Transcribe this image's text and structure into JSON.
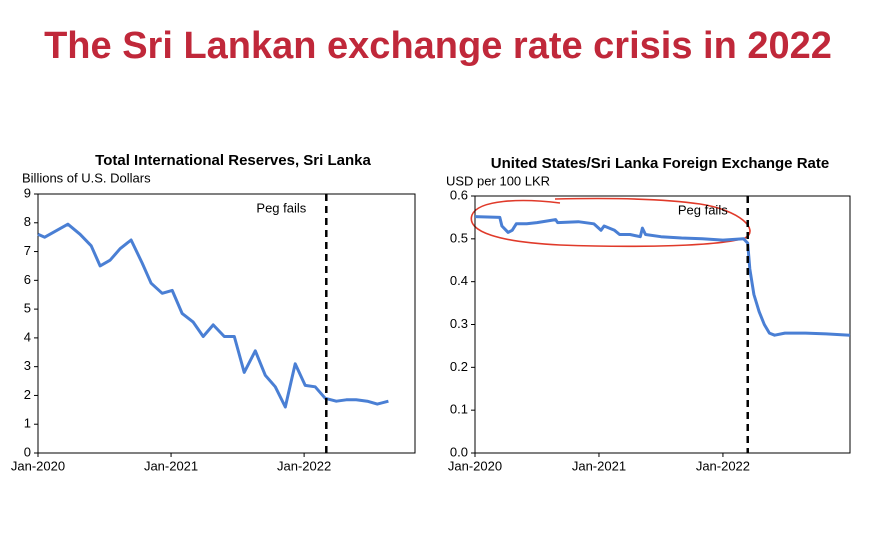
{
  "title": "The Sri Lankan exchange rate crisis in 2022",
  "chart_data": [
    {
      "type": "line",
      "title": "Total International Reserves, Sri Lanka",
      "y_label": "Billions of U.S. Dollars",
      "x": [
        0,
        0.6,
        2.7,
        3.8,
        4.8,
        5.6,
        6.5,
        7.4,
        8.4,
        9.4,
        10.2,
        11.2,
        12.1,
        13,
        14,
        14.9,
        15.8,
        16.8,
        17.7,
        18.6,
        19.6,
        20.5,
        21.4,
        22.3,
        23.2,
        24.1,
        25,
        25.9,
        26.9,
        27.8,
        28.7,
        29.7,
        30.6,
        31.6
      ],
      "values": [
        7.6,
        7.5,
        7.95,
        7.6,
        7.2,
        6.5,
        6.7,
        7.1,
        7.4,
        6.6,
        5.9,
        5.55,
        5.65,
        4.85,
        4.55,
        4.05,
        4.45,
        4.05,
        4.05,
        2.8,
        3.55,
        2.7,
        2.3,
        1.6,
        3.1,
        2.35,
        2.3,
        1.9,
        1.8,
        1.85,
        1.85,
        1.8,
        1.7,
        1.8
      ],
      "color": "#4a7fd4",
      "xlim": [
        0,
        34
      ],
      "xticks": [
        {
          "value": 0,
          "label": "Jan-2020"
        },
        {
          "value": 12,
          "label": "Jan-2021"
        },
        {
          "value": 24,
          "label": "Jan-2022"
        }
      ],
      "ylim": [
        0,
        9
      ],
      "yticks": [
        0,
        1,
        2,
        3,
        4,
        5,
        6,
        7,
        8,
        9
      ],
      "vline": {
        "x": 26,
        "label": "Peg fails"
      }
    },
    {
      "type": "line",
      "title": "United States/Sri Lanka Foreign Exchange Rate",
      "y_label": "USD per 100 LKR",
      "x": [
        0,
        2.4,
        2.6,
        3.2,
        3.6,
        4,
        5,
        6,
        7.8,
        8,
        10,
        11.5,
        12.2,
        12.5,
        13.5,
        14,
        15,
        16,
        16.2,
        16.5,
        18,
        20,
        22,
        24,
        26,
        26.4,
        26.6,
        27,
        27.5,
        28,
        28.5,
        29,
        30,
        32,
        34,
        36.3
      ],
      "values": [
        0.552,
        0.55,
        0.53,
        0.515,
        0.52,
        0.535,
        0.535,
        0.538,
        0.545,
        0.538,
        0.54,
        0.535,
        0.52,
        0.53,
        0.52,
        0.51,
        0.51,
        0.505,
        0.525,
        0.51,
        0.505,
        0.502,
        0.5,
        0.497,
        0.5,
        0.49,
        0.43,
        0.37,
        0.33,
        0.3,
        0.28,
        0.275,
        0.28,
        0.28,
        0.278,
        0.275
      ],
      "color": "#4a7fd4",
      "xlim": [
        0,
        36.3
      ],
      "xticks": [
        {
          "value": 0,
          "label": "Jan-2020"
        },
        {
          "value": 12,
          "label": "Jan-2021"
        },
        {
          "value": 24,
          "label": "Jan-2022"
        }
      ],
      "ylim": [
        0,
        0.6
      ],
      "yticks": [
        {
          "value": 0,
          "label": "0.0"
        },
        0.1,
        0.2,
        0.3,
        0.4,
        0.5,
        0.6
      ],
      "vline": {
        "x": 26.4,
        "label": "Peg fails"
      }
    }
  ]
}
